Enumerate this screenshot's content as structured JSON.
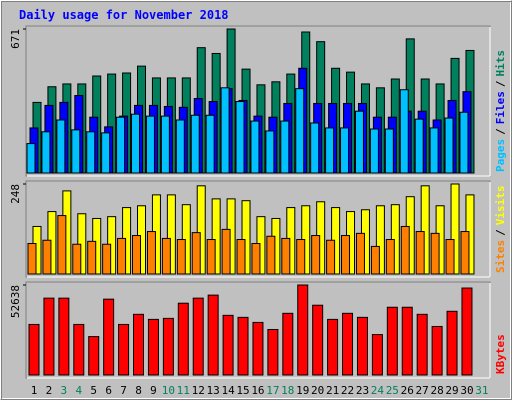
{
  "chart_data": [
    {
      "type": "bar",
      "title": "Daily usage for November 2018",
      "ylim": [
        0,
        671
      ],
      "yticks": [
        671
      ],
      "legend_separator": "/",
      "series": [
        {
          "name": "Hits",
          "color": "#00805c",
          "values": [
            329,
            402,
            415,
            415,
            452,
            461,
            466,
            498,
            443,
            443,
            443,
            584,
            557,
            671,
            484,
            411,
            425,
            461,
            657,
            612,
            488,
            470,
            415,
            397,
            438,
            625,
            438,
            415,
            534,
            571,
            null
          ]
        },
        {
          "name": "Files",
          "color": "#0000ff",
          "values": [
            210,
            315,
            329,
            361,
            260,
            215,
            265,
            315,
            315,
            310,
            306,
            347,
            333,
            393,
            338,
            265,
            260,
            324,
            488,
            324,
            324,
            324,
            324,
            260,
            260,
            288,
            288,
            247,
            338,
            379,
            null
          ]
        },
        {
          "name": "Pages",
          "color": "#00c0ff",
          "values": [
            137,
            192,
            247,
            201,
            192,
            187,
            260,
            274,
            265,
            265,
            247,
            269,
            269,
            397,
            333,
            242,
            196,
            242,
            393,
            233,
            210,
            210,
            288,
            205,
            205,
            388,
            251,
            210,
            256,
            283,
            null
          ]
        }
      ]
    },
    {
      "type": "bar",
      "ylim": [
        0,
        248
      ],
      "yticks": [
        248
      ],
      "legend_separator": "/",
      "series": [
        {
          "name": "Visits",
          "color": "#ffff00",
          "values": [
            131,
            172,
            229,
            166,
            153,
            158,
            183,
            188,
            218,
            218,
            191,
            243,
            207,
            207,
            202,
            158,
            153,
            183,
            188,
            199,
            183,
            172,
            177,
            188,
            191,
            213,
            243,
            188,
            248,
            218,
            null
          ]
        },
        {
          "name": "Sites",
          "color": "#ff8000",
          "values": [
            84,
            93,
            161,
            82,
            90,
            82,
            98,
            106,
            117,
            98,
            95,
            114,
            95,
            123,
            95,
            84,
            104,
            98,
            95,
            106,
            93,
            106,
            112,
            76,
            95,
            131,
            117,
            112,
            95,
            117,
            null
          ]
        }
      ]
    },
    {
      "type": "bar",
      "ylim": [
        0,
        52638
      ],
      "yticks": [
        52638
      ],
      "categories": [
        "1",
        "2",
        "3",
        "4",
        "5",
        "6",
        "7",
        "8",
        "9",
        "10",
        "11",
        "12",
        "13",
        "14",
        "15",
        "16",
        "17",
        "18",
        "19",
        "20",
        "21",
        "22",
        "23",
        "24",
        "25",
        "26",
        "27",
        "28",
        "29",
        "30",
        "31"
      ],
      "category_colors": [
        "#000000",
        "#000000",
        "#00805c",
        "#00805c",
        "#000000",
        "#000000",
        "#000000",
        "#000000",
        "#000000",
        "#00805c",
        "#00805c",
        "#000000",
        "#000000",
        "#000000",
        "#000000",
        "#000000",
        "#00805c",
        "#00805c",
        "#000000",
        "#000000",
        "#000000",
        "#000000",
        "#000000",
        "#00805c",
        "#00805c",
        "#000000",
        "#000000",
        "#000000",
        "#000000",
        "#000000",
        "#00805c"
      ],
      "series": [
        {
          "name": "KBytes",
          "color": "#ff0000",
          "values": [
            29570,
            44946,
            44946,
            29570,
            22473,
            44355,
            29570,
            35484,
            32527,
            33118,
            41989,
            44946,
            46721,
            34893,
            33710,
            30753,
            26613,
            36075,
            52638,
            40807,
            32527,
            36075,
            33710,
            23656,
            39624,
            39624,
            35484,
            28387,
            37258,
            50860,
            null
          ]
        }
      ]
    }
  ]
}
